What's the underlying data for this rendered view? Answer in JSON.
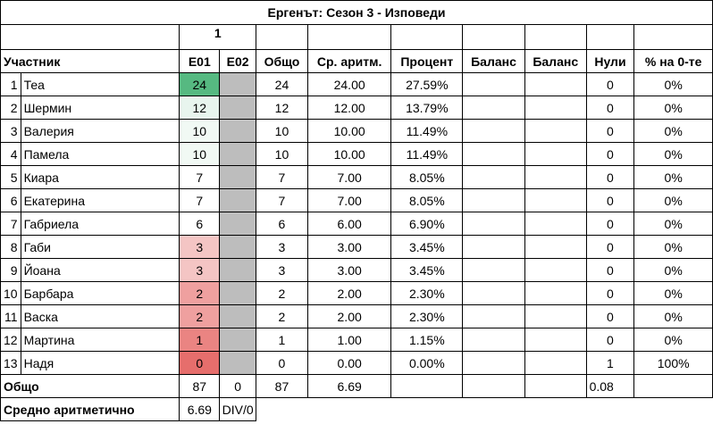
{
  "title": "Ергенът: Сезон 3 - Изповеди",
  "group_label": "1",
  "headers": {
    "participant": "Участник",
    "e01": "E01",
    "e02": "E02",
    "total": "Общо",
    "avg": "Ср. аритм.",
    "percent": "Процент",
    "balance1": "Баланс",
    "balance2": "Баланс",
    "zeros": "Нули",
    "zero_pct": "% на 0-те"
  },
  "rows": [
    {
      "n": "1",
      "name": "Теа",
      "e01": "24",
      "total": "24",
      "avg": "24.00",
      "pct": "27.59%",
      "zeros": "0",
      "zpct": "0%"
    },
    {
      "n": "2",
      "name": "Шермин",
      "e01": "12",
      "total": "12",
      "avg": "12.00",
      "pct": "13.79%",
      "zeros": "0",
      "zpct": "0%"
    },
    {
      "n": "3",
      "name": "Валерия",
      "e01": "10",
      "total": "10",
      "avg": "10.00",
      "pct": "11.49%",
      "zeros": "0",
      "zpct": "0%"
    },
    {
      "n": "4",
      "name": "Памела",
      "e01": "10",
      "total": "10",
      "avg": "10.00",
      "pct": "11.49%",
      "zeros": "0",
      "zpct": "0%"
    },
    {
      "n": "5",
      "name": "Киара",
      "e01": "7",
      "total": "7",
      "avg": "7.00",
      "pct": "8.05%",
      "zeros": "0",
      "zpct": "0%"
    },
    {
      "n": "6",
      "name": "Екатерина",
      "e01": "7",
      "total": "7",
      "avg": "7.00",
      "pct": "8.05%",
      "zeros": "0",
      "zpct": "0%"
    },
    {
      "n": "7",
      "name": "Габриела",
      "e01": "6",
      "total": "6",
      "avg": "6.00",
      "pct": "6.90%",
      "zeros": "0",
      "zpct": "0%"
    },
    {
      "n": "8",
      "name": "Габи",
      "e01": "3",
      "total": "3",
      "avg": "3.00",
      "pct": "3.45%",
      "zeros": "0",
      "zpct": "0%"
    },
    {
      "n": "9",
      "name": "Йоана",
      "e01": "3",
      "total": "3",
      "avg": "3.00",
      "pct": "3.45%",
      "zeros": "0",
      "zpct": "0%"
    },
    {
      "n": "10",
      "name": "Барбара",
      "e01": "2",
      "total": "2",
      "avg": "2.00",
      "pct": "2.30%",
      "zeros": "0",
      "zpct": "0%"
    },
    {
      "n": "11",
      "name": "Васка",
      "e01": "2",
      "total": "2",
      "avg": "2.00",
      "pct": "2.30%",
      "zeros": "0",
      "zpct": "0%"
    },
    {
      "n": "12",
      "name": "Мартина",
      "e01": "1",
      "total": "1",
      "avg": "1.00",
      "pct": "1.15%",
      "zeros": "0",
      "zpct": "0%"
    },
    {
      "n": "13",
      "name": "Надя",
      "e01": "0",
      "total": "0",
      "avg": "0.00",
      "pct": "0.00%",
      "zeros": "1",
      "zpct": "100%"
    }
  ],
  "e01_colors": [
    "#56b981",
    "#e8f5ee",
    "#f1f9f4",
    "#f1f9f4",
    "#ffffff",
    "#ffffff",
    "#ffffff",
    "#f4c5c4",
    "#f4c5c4",
    "#efa09f",
    "#efa09f",
    "#ea8482",
    "#e66e6c"
  ],
  "totals": {
    "label": "Общо",
    "e01": "87",
    "e02": "0",
    "total": "87",
    "avg": "6.69",
    "zeros": "0.08"
  },
  "average": {
    "label": "Средно аритметично",
    "e01": "6.69",
    "e02": "DIV/0"
  }
}
